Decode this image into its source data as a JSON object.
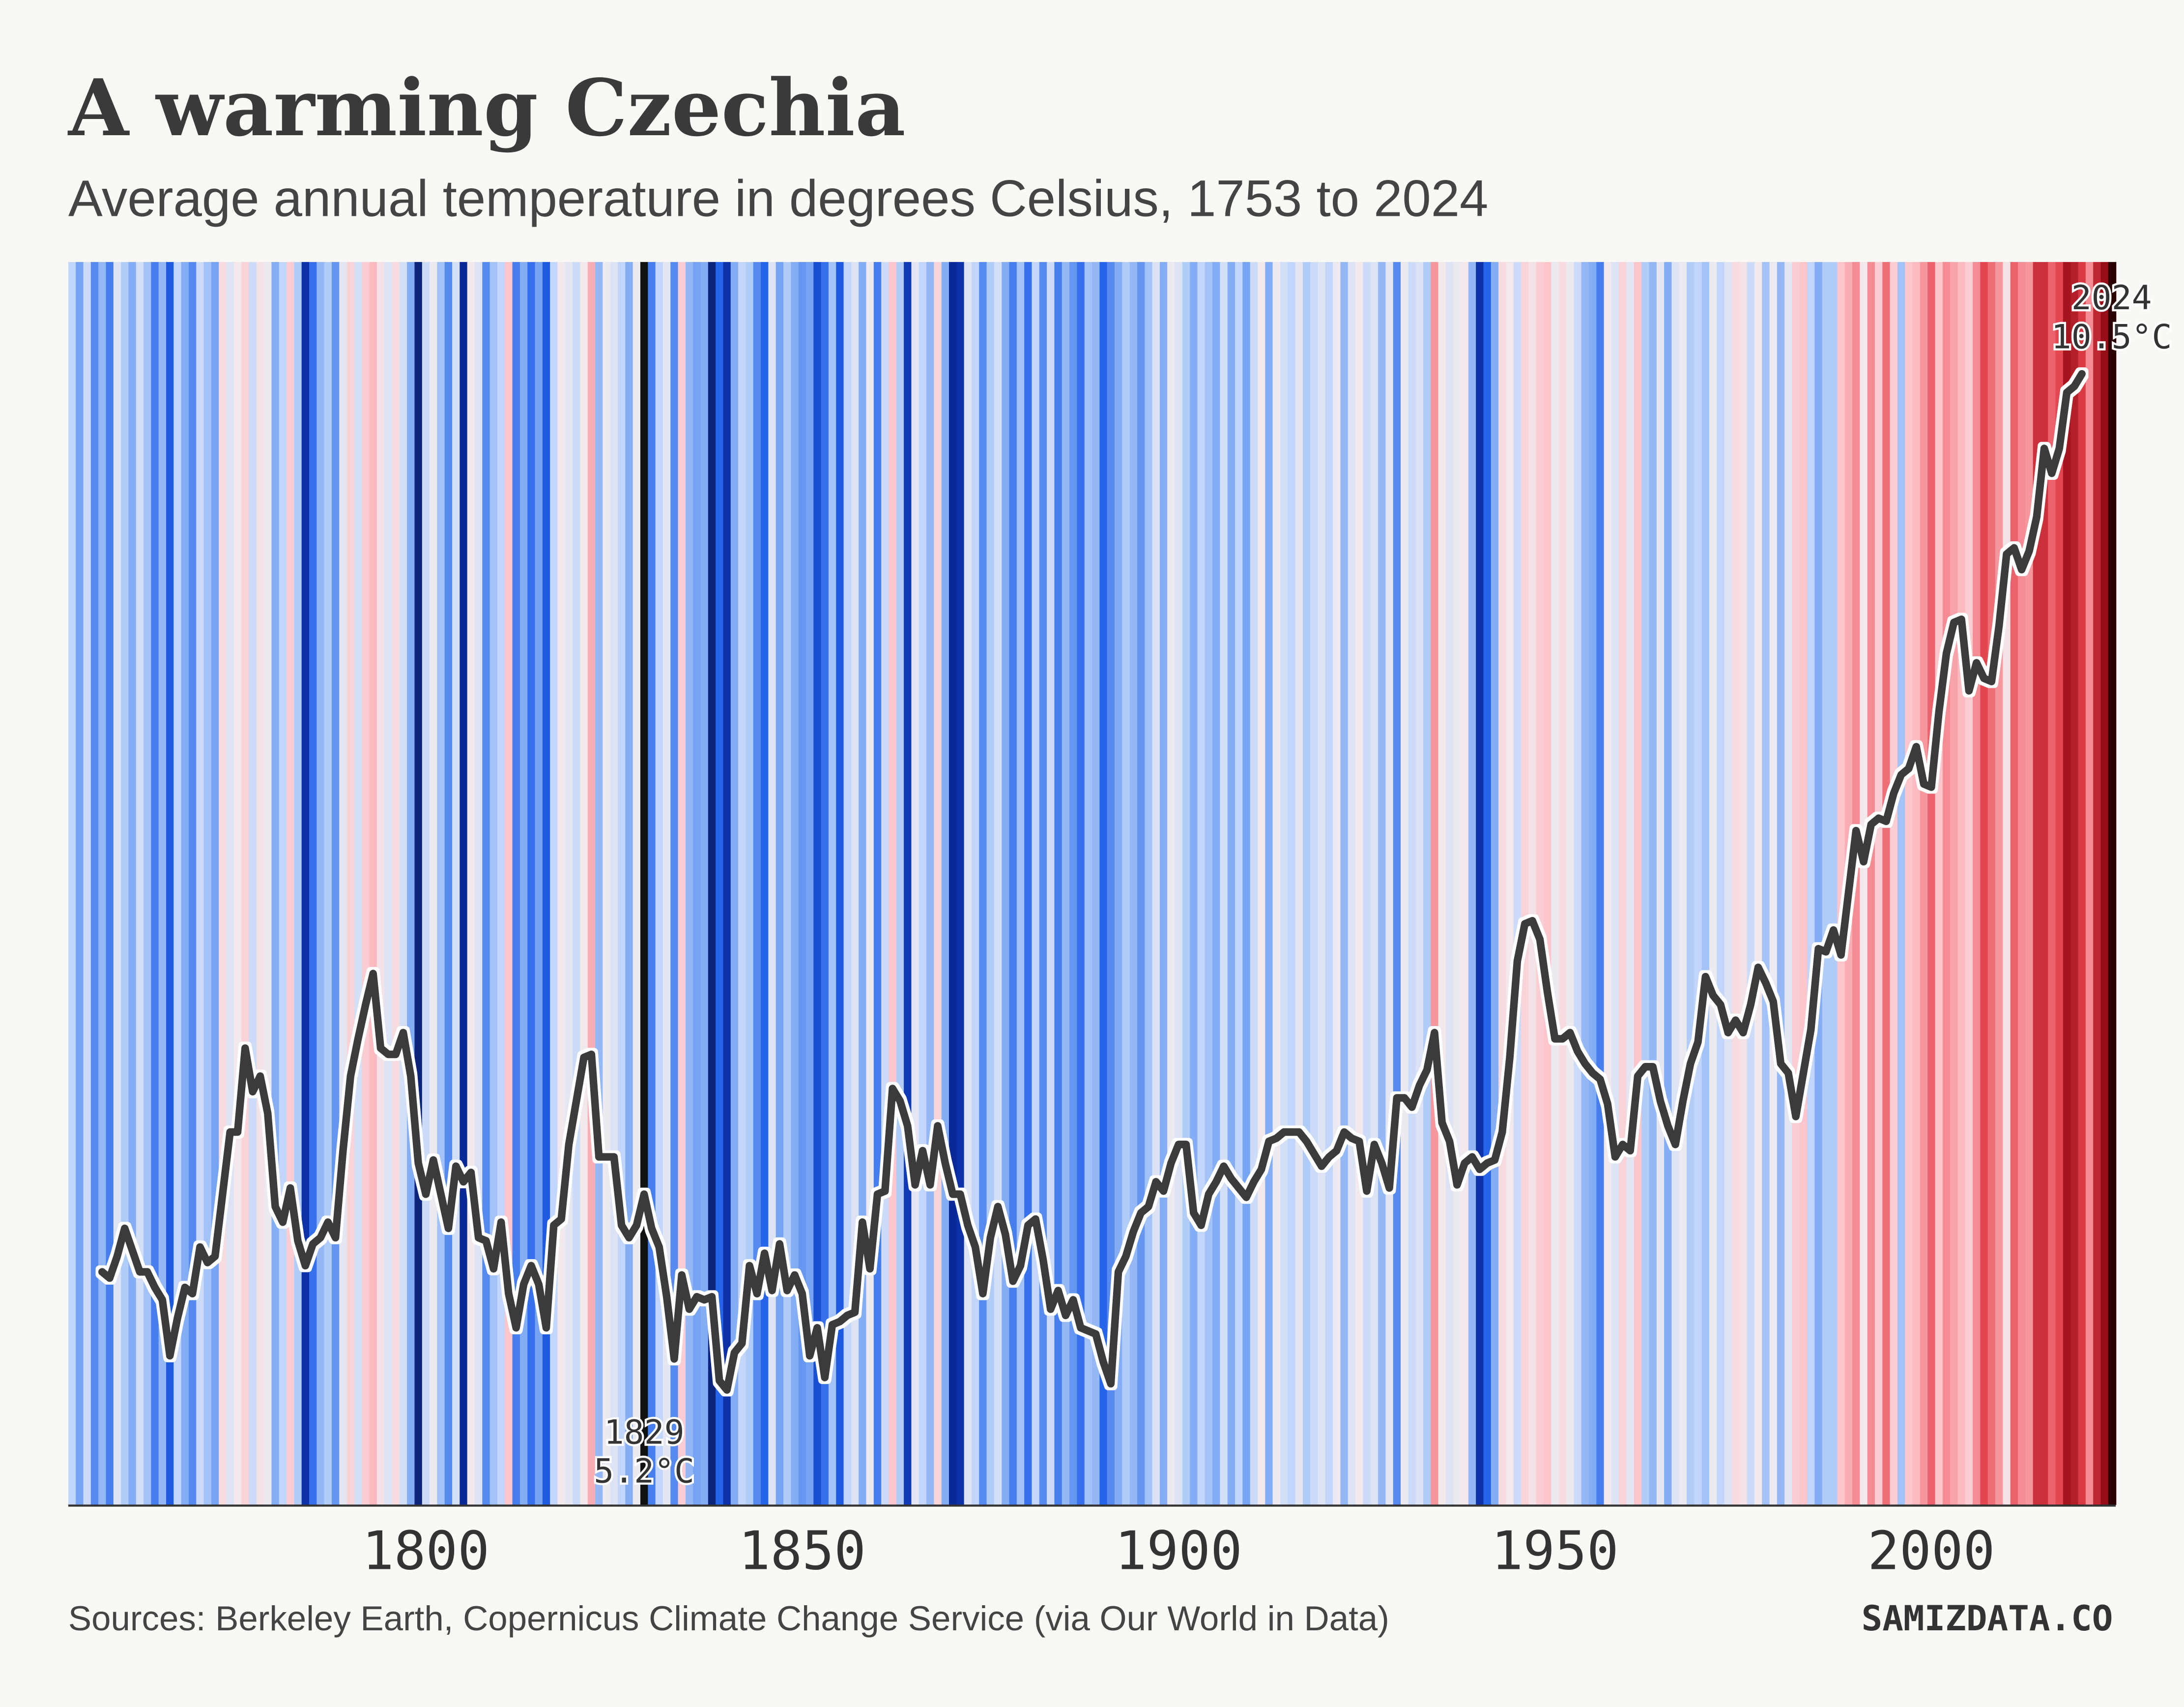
{
  "chart_data": {
    "type": "stripes",
    "title": "A warming Czechia",
    "subtitle": "Average annual temperature in degrees Celsius, 1753 to 2024",
    "source": "Sources: Berkeley Earth, Copernicus Climate Change Service (via Our World in Data)",
    "brand": "SAMIZDATA.CO",
    "xlim": [
      1752.5,
      2024.5
    ],
    "xticks": [
      1800,
      1850,
      1900,
      1950,
      2000
    ],
    "ylim": [
      6.2,
      10.2
    ],
    "x": [
      1753,
      1754,
      1755,
      1756,
      1757,
      1758,
      1759,
      1760,
      1761,
      1762,
      1763,
      1764,
      1765,
      1766,
      1767,
      1768,
      1769,
      1770,
      1771,
      1772,
      1773,
      1774,
      1775,
      1776,
      1777,
      1778,
      1779,
      1780,
      1781,
      1782,
      1783,
      1784,
      1785,
      1786,
      1787,
      1788,
      1789,
      1790,
      1791,
      1792,
      1793,
      1794,
      1795,
      1796,
      1797,
      1798,
      1799,
      1800,
      1801,
      1802,
      1803,
      1804,
      1805,
      1806,
      1807,
      1808,
      1809,
      1810,
      1811,
      1812,
      1813,
      1814,
      1815,
      1816,
      1817,
      1818,
      1819,
      1820,
      1821,
      1822,
      1823,
      1824,
      1825,
      1826,
      1827,
      1828,
      1829,
      1830,
      1831,
      1832,
      1833,
      1834,
      1835,
      1836,
      1837,
      1838,
      1839,
      1840,
      1841,
      1842,
      1843,
      1844,
      1845,
      1846,
      1847,
      1848,
      1849,
      1850,
      1851,
      1852,
      1853,
      1854,
      1855,
      1856,
      1857,
      1858,
      1859,
      1860,
      1861,
      1862,
      1863,
      1864,
      1865,
      1866,
      1867,
      1868,
      1869,
      1870,
      1871,
      1872,
      1873,
      1874,
      1875,
      1876,
      1877,
      1878,
      1879,
      1880,
      1881,
      1882,
      1883,
      1884,
      1885,
      1886,
      1887,
      1888,
      1889,
      1890,
      1891,
      1892,
      1893,
      1894,
      1895,
      1896,
      1897,
      1898,
      1899,
      1900,
      1901,
      1902,
      1903,
      1904,
      1905,
      1906,
      1907,
      1908,
      1909,
      1910,
      1911,
      1912,
      1913,
      1914,
      1915,
      1916,
      1917,
      1918,
      1919,
      1920,
      1921,
      1922,
      1923,
      1924,
      1925,
      1926,
      1927,
      1928,
      1929,
      1930,
      1931,
      1932,
      1933,
      1934,
      1935,
      1936,
      1937,
      1938,
      1939,
      1940,
      1941,
      1942,
      1943,
      1944,
      1945,
      1946,
      1947,
      1948,
      1949,
      1950,
      1951,
      1952,
      1953,
      1954,
      1955,
      1956,
      1957,
      1958,
      1959,
      1960,
      1961,
      1962,
      1963,
      1964,
      1965,
      1966,
      1967,
      1968,
      1969,
      1970,
      1971,
      1972,
      1973,
      1974,
      1975,
      1976,
      1977,
      1978,
      1979,
      1980,
      1981,
      1982,
      1983,
      1984,
      1985,
      1986,
      1987,
      1988,
      1989,
      1990,
      1991,
      1992,
      1993,
      1994,
      1995,
      1996,
      1997,
      1998,
      1999,
      2000,
      2001,
      2002,
      2003,
      2004,
      2005,
      2006,
      2007,
      2008,
      2009,
      2010,
      2011,
      2012,
      2013,
      2014,
      2015,
      2016,
      2017,
      2018,
      2019,
      2020,
      2021,
      2022,
      2023,
      2024
    ],
    "series": [
      {
        "type": "stripes",
        "colors": [
          "#111111",
          "#0a2a9e",
          "#2060e8",
          "#74a2f2",
          "#c4d8fa",
          "#f0ecef",
          "#fcc8ce",
          "#f58a92",
          "#e0404a",
          "#9c0f18",
          "#2a0204"
        ],
        "values": [
          7.3,
          6.8,
          7.4,
          6.6,
          7.0,
          6.5,
          7.6,
          7.2,
          6.9,
          7.5,
          7.1,
          6.5,
          7.0,
          6.2,
          7.3,
          6.9,
          6.6,
          7.4,
          7.1,
          6.8,
          8.1,
          7.6,
          7.9,
          8.2,
          7.4,
          8.0,
          7.8,
          6.9,
          7.3,
          8.3,
          7.2,
          5.8,
          6.4,
          7.0,
          7.2,
          6.7,
          7.7,
          8.2,
          7.5,
          8.3,
          8.5,
          8.0,
          7.6,
          8.1,
          7.5,
          6.9,
          5.6,
          7.4,
          7.8,
          7.1,
          6.6,
          7.5,
          5.7,
          7.9,
          7.6,
          6.6,
          7.1,
          7.3,
          8.4,
          6.5,
          6.9,
          6.4,
          6.8,
          6.2,
          7.3,
          7.9,
          7.7,
          7.4,
          7.9,
          8.6,
          7.0,
          7.8,
          7.6,
          7.3,
          6.9,
          7.8,
          5.2,
          6.5,
          7.3,
          7.7,
          6.6,
          8.3,
          7.0,
          6.8,
          6.9,
          5.6,
          6.3,
          5.8,
          6.9,
          7.3,
          7.2,
          6.6,
          6.3,
          7.6,
          6.8,
          7.2,
          6.9,
          6.7,
          6.8,
          6.1,
          6.4,
          7.1,
          6.2,
          7.3,
          7.6,
          6.9,
          7.8,
          6.5,
          7.4,
          8.4,
          7.2,
          5.9,
          7.7,
          7.3,
          7.0,
          8.2,
          6.9,
          5.7,
          5.8,
          7.6,
          7.3,
          6.6,
          7.2,
          7.5,
          6.9,
          6.5,
          7.1,
          6.4,
          7.3,
          6.6,
          7.4,
          6.5,
          7.0,
          6.7,
          6.4,
          7.1,
          7.0,
          6.3,
          6.6,
          6.9,
          7.2,
          7.0,
          6.7,
          7.1,
          7.6,
          6.9,
          7.8,
          7.6,
          7.2,
          6.9,
          7.3,
          7.1,
          6.9,
          7.5,
          6.9,
          7.3,
          6.8,
          7.4,
          7.9,
          6.9,
          7.8,
          7.5,
          7.3,
          7.7,
          7.2,
          7.4,
          7.6,
          7.3,
          7.8,
          7.0,
          7.6,
          7.9,
          7.4,
          7.6,
          7.0,
          7.7,
          6.6,
          7.8,
          7.4,
          7.6,
          7.2,
          8.8,
          7.9,
          7.6,
          7.8,
          7.9,
          7.0,
          5.8,
          6.3,
          6.9,
          8.1,
          7.9,
          7.4,
          8.2,
          8.0,
          8.3,
          8.4,
          7.8,
          8.1,
          7.8,
          7.4,
          7.0,
          6.9,
          6.5,
          7.9,
          7.6,
          8.2,
          7.7,
          8.4,
          7.2,
          7.0,
          7.7,
          6.9,
          7.6,
          7.8,
          7.2,
          7.3,
          7.1,
          7.8,
          7.3,
          7.6,
          8.1,
          8.0,
          7.4,
          7.9,
          7.1,
          7.8,
          7.0,
          7.7,
          8.3,
          8.4,
          7.3,
          6.9,
          7.2,
          7.2,
          8.4,
          8.6,
          8.9,
          7.9,
          8.9,
          8.3,
          9.1,
          8.3,
          7.1,
          8.4,
          8.5,
          8.8,
          9.2,
          8.4,
          8.9,
          8.7,
          8.5,
          8.3,
          8.9,
          9.4,
          9.1,
          8.8,
          8.0,
          9.2,
          8.9,
          8.8,
          9.6,
          9.6,
          9.2,
          9.4,
          9.9,
          9.8,
          9.5,
          8.9,
          9.7,
          10.0,
          10.5
        ]
      },
      {
        "type": "line",
        "color": "#3a3a3a",
        "values": [
          null,
          null,
          null,
          null,
          6.95,
          6.93,
          7.0,
          7.09,
          7.02,
          6.95,
          6.95,
          6.9,
          6.86,
          6.68,
          6.8,
          6.9,
          6.88,
          7.03,
          6.98,
          7.0,
          7.2,
          7.4,
          7.4,
          7.67,
          7.53,
          7.58,
          7.46,
          7.16,
          7.11,
          7.22,
          7.05,
          6.97,
          7.04,
          7.06,
          7.11,
          7.06,
          7.34,
          7.58,
          7.7,
          7.81,
          7.91,
          7.67,
          7.65,
          7.65,
          7.72,
          7.58,
          7.3,
          7.2,
          7.31,
          7.2,
          7.09,
          7.29,
          7.24,
          7.27,
          7.06,
          7.05,
          6.96,
          7.11,
          6.88,
          6.77,
          6.91,
          6.97,
          6.91,
          6.77,
          7.1,
          7.12,
          7.36,
          7.5,
          7.64,
          7.65,
          7.32,
          7.32,
          7.32,
          7.1,
          7.06,
          7.1,
          7.2,
          7.09,
          7.03,
          6.87,
          6.67,
          6.94,
          6.83,
          6.87,
          6.86,
          6.87,
          6.6,
          6.57,
          6.69,
          6.72,
          6.97,
          6.88,
          7.01,
          6.89,
          7.04,
          6.89,
          6.94,
          6.88,
          6.68,
          6.77,
          6.61,
          6.78,
          6.79,
          6.81,
          6.82,
          7.11,
          6.96,
          7.2,
          7.21,
          7.54,
          7.5,
          7.42,
          7.23,
          7.34,
          7.23,
          7.42,
          7.3,
          7.2,
          7.2,
          7.1,
          7.03,
          6.88,
          7.06,
          7.16,
          7.07,
          6.92,
          6.97,
          7.1,
          7.12,
          6.99,
          6.83,
          6.89,
          6.81,
          6.86,
          6.77,
          6.76,
          6.75,
          6.66,
          6.59,
          6.95,
          7.0,
          7.08,
          7.14,
          7.16,
          7.24,
          7.21,
          7.3,
          7.36,
          7.36,
          7.14,
          7.1,
          7.2,
          7.24,
          7.29,
          7.25,
          7.22,
          7.19,
          7.24,
          7.28,
          7.37,
          7.38,
          7.4,
          7.4,
          7.4,
          7.37,
          7.33,
          7.29,
          7.32,
          7.34,
          7.4,
          7.38,
          7.37,
          7.21,
          7.36,
          7.3,
          7.22,
          7.51,
          7.51,
          7.48,
          7.55,
          7.6,
          7.72,
          7.43,
          7.37,
          7.23,
          7.3,
          7.32,
          7.28,
          7.3,
          7.31,
          7.4,
          7.64,
          7.95,
          8.07,
          8.08,
          8.02,
          7.85,
          7.7,
          7.7,
          7.72,
          7.66,
          7.62,
          7.59,
          7.57,
          7.49,
          7.32,
          7.36,
          7.34,
          7.58,
          7.61,
          7.61,
          7.5,
          7.42,
          7.36,
          7.5,
          7.62,
          7.69,
          7.9,
          7.84,
          7.81,
          7.72,
          7.76,
          7.72,
          7.81,
          7.93,
          7.88,
          7.82,
          7.62,
          7.59,
          7.45,
          7.59,
          7.73,
          7.99,
          7.98,
          8.05,
          7.97,
          8.17,
          8.37,
          8.27,
          8.39,
          8.41,
          8.4,
          8.49,
          8.55,
          8.57,
          8.64,
          8.52,
          8.51,
          8.75,
          8.94,
          9.04,
          9.05,
          8.82,
          8.91,
          8.86,
          8.85,
          9.03,
          9.26,
          9.28,
          9.21,
          9.27,
          9.38,
          9.6,
          9.52,
          9.6,
          9.78,
          9.8,
          9.84,
          null,
          null,
          null,
          null
        ]
      }
    ],
    "annotations": [
      {
        "x": 1829,
        "value": 5.2,
        "label": "5.2°C"
      },
      {
        "x": 2024,
        "value": 10.5,
        "label": "10.5°C"
      }
    ]
  }
}
